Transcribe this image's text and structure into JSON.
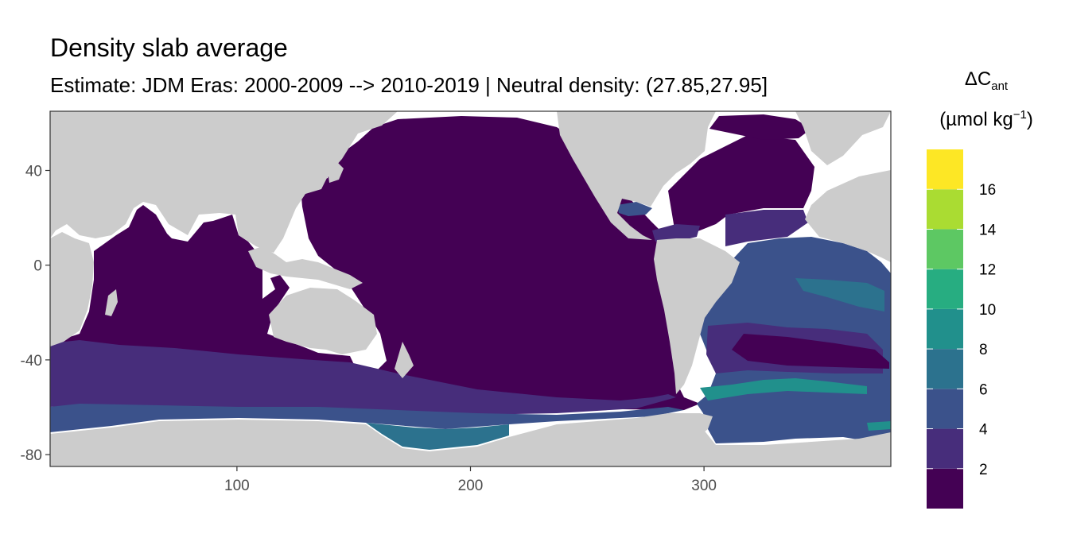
{
  "title": "Density slab average",
  "subtitle": "Estimate: JDM Eras: 2000-2009 --> 2010-2019 | Neutral density: (27.85,27.95]",
  "legend": {
    "title_main": "ΔC",
    "title_sub": "ant",
    "unit_open": "(µmol kg",
    "unit_sup": "−1",
    "unit_close": ")",
    "bins": [
      {
        "from": 0,
        "to": 2,
        "color": "#440154"
      },
      {
        "from": 2,
        "to": 4,
        "color": "#472D7B"
      },
      {
        "from": 4,
        "to": 6,
        "color": "#3B528B"
      },
      {
        "from": 6,
        "to": 8,
        "color": "#2C728E"
      },
      {
        "from": 8,
        "to": 10,
        "color": "#21908C"
      },
      {
        "from": 10,
        "to": 12,
        "color": "#27AD81"
      },
      {
        "from": 12,
        "to": 14,
        "color": "#5DC863"
      },
      {
        "from": 14,
        "to": 16,
        "color": "#AADC32"
      },
      {
        "from": 16,
        "to": 18,
        "color": "#FDE725"
      }
    ],
    "tick_labels": [
      "2",
      "4",
      "6",
      "8",
      "10",
      "12",
      "14",
      "16"
    ]
  },
  "axes": {
    "x_ticks": [
      100,
      200,
      300
    ],
    "y_ticks": [
      40,
      0,
      -40,
      -80
    ],
    "xlim": [
      20,
      380
    ],
    "ylim": [
      -85,
      65
    ]
  },
  "colors": {
    "land": "#CCCCCC",
    "unsampled_ocean": "#FFFFFF",
    "panel_border": "#333333"
  }
}
